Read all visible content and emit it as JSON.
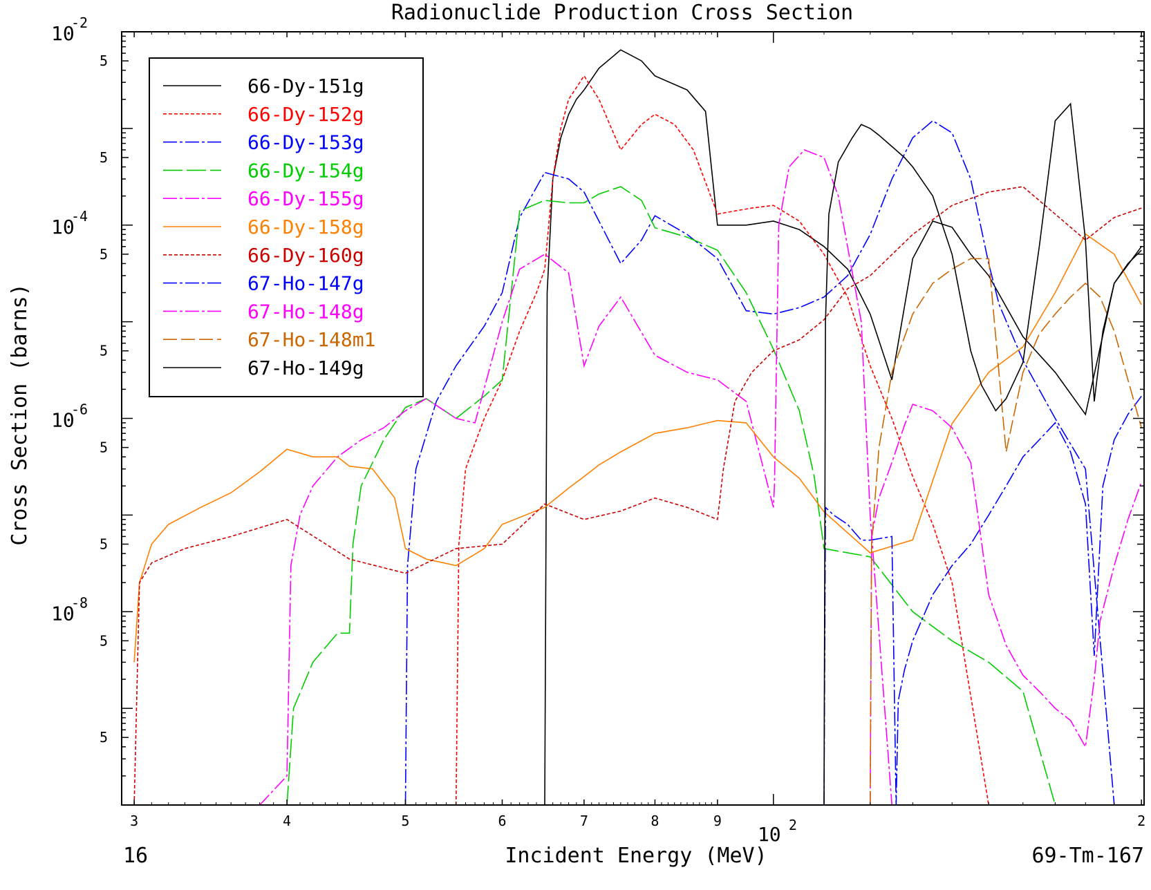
{
  "chart_data": {
    "type": "line",
    "title": "Radionuclide Production Cross Section",
    "xlabel": "Incident Energy (MeV)",
    "ylabel": "Cross Section (barns)",
    "footer_left": "16",
    "footer_right": "69-Tm-167",
    "x_scale": "log",
    "y_scale": "log",
    "xlim": [
      29.3,
      201
    ],
    "ylim": [
      1e-10,
      0.01
    ],
    "x_ticks": [
      {
        "value": 30,
        "label": "3",
        "major": false
      },
      {
        "value": 40,
        "label": "4",
        "major": false
      },
      {
        "value": 50,
        "label": "5",
        "major": false
      },
      {
        "value": 60,
        "label": "6",
        "major": false
      },
      {
        "value": 70,
        "label": "7",
        "major": false
      },
      {
        "value": 80,
        "label": "8",
        "major": false
      },
      {
        "value": 90,
        "label": "9",
        "major": false
      },
      {
        "value": 100,
        "label": "10",
        "sup": "2",
        "major": true
      },
      {
        "value": 200,
        "label": "2",
        "major": false
      }
    ],
    "y_ticks": [
      {
        "value": 0.01,
        "label": "10",
        "sup": "-2",
        "major": true
      },
      {
        "value": 0.005,
        "label": "5",
        "major": false
      },
      {
        "value": 0.0005,
        "label": "5",
        "major": false
      },
      {
        "value": 0.0001,
        "label": "10",
        "sup": "-4",
        "major": true
      },
      {
        "value": 5e-05,
        "label": "5",
        "major": false
      },
      {
        "value": 5e-06,
        "label": "5",
        "major": false
      },
      {
        "value": 1e-06,
        "label": "10",
        "sup": "-6",
        "major": true
      },
      {
        "value": 5e-07,
        "label": "5",
        "major": false
      },
      {
        "value": 5e-08,
        "label": "5",
        "major": false
      },
      {
        "value": 1e-08,
        "label": "10",
        "sup": "-8",
        "major": true
      },
      {
        "value": 5e-09,
        "label": "5",
        "major": false
      },
      {
        "value": 5e-10,
        "label": "5",
        "major": false
      }
    ],
    "series": [
      {
        "name": "66-Dy-151g",
        "color": "#000000",
        "dash": "",
        "x": [
          65,
          65.3,
          66,
          67,
          68,
          69,
          70,
          72,
          75,
          78,
          80,
          85,
          88,
          90,
          95,
          100,
          105,
          110,
          115,
          120,
          125,
          130,
          135,
          140,
          145,
          150,
          160,
          170,
          180,
          190,
          200
        ],
        "y": [
          1e-10,
          2e-05,
          0.0003,
          0.0008,
          0.0014,
          0.002,
          0.0025,
          0.0042,
          0.0065,
          0.005,
          0.0035,
          0.0025,
          0.0015,
          0.0001,
          0.0001,
          0.00011,
          9e-05,
          6e-05,
          3.5e-05,
          1.2e-05,
          2.5e-06,
          4.5e-05,
          0.00011,
          9.5e-05,
          5e-05,
          3e-05,
          7e-06,
          3e-06,
          1.1e-06,
          2.5e-05,
          6e-05
        ]
      },
      {
        "name": "66-Dy-152g",
        "color": "#ff0000",
        "dash": "5,3",
        "x": [
          55,
          55.3,
          56,
          58,
          60,
          62,
          64,
          65,
          66,
          67,
          68,
          70,
          72,
          75,
          78,
          80,
          83,
          86,
          90,
          93,
          96,
          100,
          105,
          110,
          115,
          120,
          125,
          130,
          135,
          140,
          150,
          160,
          170,
          180,
          190,
          200
        ],
        "y": [
          1e-10,
          5e-08,
          3e-07,
          1e-06,
          2.5e-06,
          8e-06,
          2e-05,
          3.5e-05,
          0.0003,
          0.001,
          0.002,
          0.0035,
          0.002,
          0.0006,
          0.0011,
          0.0014,
          0.0011,
          0.0006,
          0.00013,
          0.00014,
          0.00015,
          0.00016,
          0.00011,
          5e-05,
          1.8e-05,
          3.5e-06,
          1e-06,
          2.5e-07,
          8e-08,
          2e-08,
          1e-10,
          1e-10,
          1e-10,
          1e-10,
          1e-10,
          1e-10
        ]
      },
      {
        "name": "66-Dy-153g",
        "color": "#0000ff",
        "dash": "20,4,4,4",
        "x": [
          50,
          50.2,
          51,
          53,
          55,
          58,
          60,
          62,
          65,
          68,
          70,
          75,
          78,
          80,
          85,
          90,
          95,
          100,
          105,
          110,
          115,
          120,
          125,
          130,
          135,
          140,
          145,
          150,
          153,
          160,
          170,
          180,
          190,
          200
        ],
        "y": [
          1e-10,
          3e-08,
          3e-07,
          1.5e-06,
          3.5e-06,
          9e-06,
          2e-05,
          0.00012,
          0.00035,
          0.0003,
          0.00022,
          4e-05,
          7e-05,
          0.000125,
          8e-05,
          4.5e-05,
          1.3e-05,
          1.2e-05,
          1.4e-05,
          1.8e-05,
          3e-05,
          8e-05,
          0.0003,
          0.0008,
          0.0012,
          0.0009,
          0.0003,
          4e-05,
          1.5e-05,
          4e-06,
          1e-06,
          3e-07,
          1e-10,
          1e-10
        ]
      },
      {
        "name": "66-Dy-154g",
        "color": "#00cc00",
        "dash": "28,6",
        "x": [
          40,
          40.5,
          42,
          44,
          45,
          45.3,
          46,
          48,
          50,
          52,
          55,
          58,
          60,
          62,
          65,
          68,
          70,
          72,
          75,
          78,
          80,
          85,
          90,
          95,
          100,
          105,
          108,
          110,
          120,
          130,
          140,
          150,
          160,
          170,
          180,
          190,
          200
        ],
        "y": [
          1e-10,
          1e-09,
          3e-09,
          6e-09,
          6e-09,
          5e-08,
          2e-07,
          6e-07,
          1.3e-06,
          1.6e-06,
          1e-06,
          1.7e-06,
          2.5e-06,
          0.00014,
          0.00018,
          0.00017,
          0.00017,
          0.00021,
          0.00025,
          0.00018,
          9.38e-05,
          7.5e-05,
          5.5e-05,
          2e-05,
          5.2e-06,
          1.2e-06,
          2.5e-07,
          4.5e-08,
          3.7e-08,
          1e-08,
          5e-09,
          3e-09,
          1.5e-09,
          1e-10,
          1e-10,
          1e-10,
          1e-10
        ]
      },
      {
        "name": "66-Dy-155g",
        "color": "#ff00ff",
        "dash": "20,4,4,4",
        "x": [
          38,
          40,
          40.3,
          41,
          42,
          44,
          46,
          48,
          50,
          52,
          55,
          57,
          60,
          62,
          65,
          68,
          70,
          72,
          75,
          80,
          85,
          90,
          95,
          100,
          100.2,
          101,
          103,
          106,
          110,
          113,
          118,
          120,
          125,
          130,
          140,
          150,
          160,
          170,
          180,
          190,
          200
        ],
        "y": [
          1e-10,
          2e-10,
          3e-08,
          1e-07,
          2e-07,
          4e-07,
          6e-07,
          8e-07,
          1.2e-06,
          1.6e-06,
          1e-06,
          9e-07,
          1e-05,
          3.5e-05,
          5e-05,
          3.2e-05,
          3.5e-06,
          9e-06,
          1.8e-05,
          4.5e-06,
          3e-06,
          2.5e-06,
          1.5e-06,
          1.2e-07,
          2e-07,
          0.0001,
          0.0004,
          0.0006,
          0.0005,
          0.0002,
          1e-05,
          1e-07,
          1e-10,
          1e-10,
          1e-10,
          1e-10,
          1e-10,
          1e-10,
          1e-10,
          1e-10,
          1e-10
        ]
      },
      {
        "name": "66-Dy-158g",
        "color": "#ff8000",
        "dash": "",
        "x": [
          30,
          30.3,
          31,
          32,
          34,
          36,
          38,
          40,
          42,
          44,
          45,
          47,
          49,
          50,
          52,
          55,
          58,
          60,
          65,
          68,
          70,
          72,
          75,
          80,
          85,
          90,
          95,
          100,
          105,
          110,
          120,
          130,
          140,
          150,
          160,
          170,
          180,
          190,
          200
        ],
        "y": [
          3e-09,
          2e-08,
          5e-08,
          8e-08,
          1.2e-07,
          1.7e-07,
          2.8e-07,
          4.8e-07,
          4e-07,
          4e-07,
          3.2e-07,
          3e-07,
          1.5e-07,
          4.5e-08,
          3.5e-08,
          3e-08,
          4.5e-08,
          8e-08,
          1.2e-07,
          1.9e-07,
          2.5e-07,
          3.3e-07,
          4.5e-07,
          7e-07,
          8e-07,
          9.5e-07,
          9e-07,
          4e-07,
          2.4e-07,
          1.08e-07,
          4.06e-08,
          5.54e-08,
          8.83e-07,
          3e-06,
          5.5e-06,
          2e-05,
          8.1e-05,
          5e-05,
          1.5e-05
        ]
      },
      {
        "name": "66-Dy-160g",
        "color": "#cc0000",
        "dash": "5,3",
        "x": [
          30,
          30.3,
          31,
          33,
          36,
          40,
          45,
          50,
          55,
          60,
          65,
          70,
          75,
          80,
          85,
          90,
          91,
          93,
          96,
          100,
          105,
          110,
          115,
          120,
          130,
          140,
          150,
          160,
          170,
          180,
          190,
          200
        ],
        "y": [
          1e-10,
          2e-08,
          3.2e-08,
          4.5e-08,
          6e-08,
          9e-08,
          3.5e-08,
          2.5e-08,
          4.5e-08,
          5e-08,
          1.3e-07,
          9e-08,
          1.1e-07,
          1.5e-07,
          1.2e-07,
          9e-08,
          3e-07,
          1.5e-06,
          3e-06,
          5e-06,
          6.5e-06,
          1.05e-05,
          2.2e-05,
          3e-05,
          8e-05,
          0.00016,
          0.00022,
          0.00025,
          0.00013,
          7e-05,
          0.00012,
          0.00015
        ]
      },
      {
        "name": "67-Ho-147g",
        "color": "#0000ff",
        "dash": "20,4,4,4",
        "x": [
          110,
          110.3,
          112,
          115,
          118,
          120,
          125,
          126,
          126.5,
          128,
          130,
          135,
          140,
          145,
          150,
          155,
          160,
          165,
          170,
          175,
          180,
          183,
          186,
          190,
          195,
          200
        ],
        "y": [
          1e-10,
          1.2e-07,
          1e-07,
          8e-08,
          5.5e-08,
          5.5e-08,
          6e-08,
          1e-10,
          1.2e-09,
          2.5e-09,
          5e-09,
          1.5e-08,
          3e-08,
          5e-08,
          1e-07,
          2e-07,
          4e-07,
          6e-07,
          9e-07,
          4.5e-07,
          1.3e-07,
          3.5e-09,
          2e-07,
          6e-07,
          1.1e-06,
          1.7e-06
        ]
      },
      {
        "name": "67-Ho-148g",
        "color": "#ff00ff",
        "dash": "20,4,4,4",
        "x": [
          120,
          120.3,
          122,
          125,
          128,
          130,
          135,
          140,
          145,
          150,
          155,
          160,
          165,
          170,
          175,
          180,
          183,
          185,
          190,
          195,
          200
        ],
        "y": [
          1e-10,
          6e-08,
          1.5e-07,
          3.5e-07,
          8.5e-07,
          1.4e-06,
          1.2e-06,
          8e-07,
          3.5e-07,
          1.5e-08,
          4.5e-09,
          2.2e-09,
          1.5e-09,
          1e-09,
          7.5e-10,
          4e-10,
          2e-09,
          8e-09,
          3e-08,
          9e-08,
          2.2e-07
        ]
      },
      {
        "name": "67-Ho-148m1",
        "color": "#cc6600",
        "dash": "20,6",
        "x": [
          120,
          120.3,
          122,
          125,
          130,
          135,
          140,
          145,
          150,
          155,
          160,
          165,
          170,
          175,
          180,
          185,
          190,
          200
        ],
        "y": [
          1e-10,
          5e-08,
          5e-07,
          3e-06,
          1.2e-05,
          2.5e-05,
          3.5e-05,
          4.5e-05,
          4.5e-05,
          4.5e-07,
          3e-06,
          7.5e-06,
          1.2e-05,
          1.8e-05,
          2.5e-05,
          1.8e-05,
          8e-06,
          8e-07
        ]
      },
      {
        "name": "67-Ho-149g",
        "color": "#000000",
        "dash": "",
        "x": [
          110,
          110.3,
          111,
          113,
          116,
          118,
          120,
          122,
          125,
          128,
          130,
          135,
          140,
          145,
          148,
          152,
          155,
          160,
          165,
          170,
          175,
          180,
          183,
          186,
          190,
          195,
          200
        ],
        "y": [
          1e-10,
          1e-05,
          0.00013,
          0.00045,
          0.0008,
          0.0011,
          0.001,
          0.00085,
          0.00065,
          0.0005,
          0.0004,
          0.0002,
          5e-05,
          5e-06,
          2.2e-06,
          1.2e-06,
          1.6e-06,
          3.8e-06,
          6e-05,
          0.0012,
          0.0018,
          7e-05,
          1.5e-06,
          8e-06,
          2.5e-05,
          4e-05,
          5.5e-05
        ]
      }
    ]
  }
}
